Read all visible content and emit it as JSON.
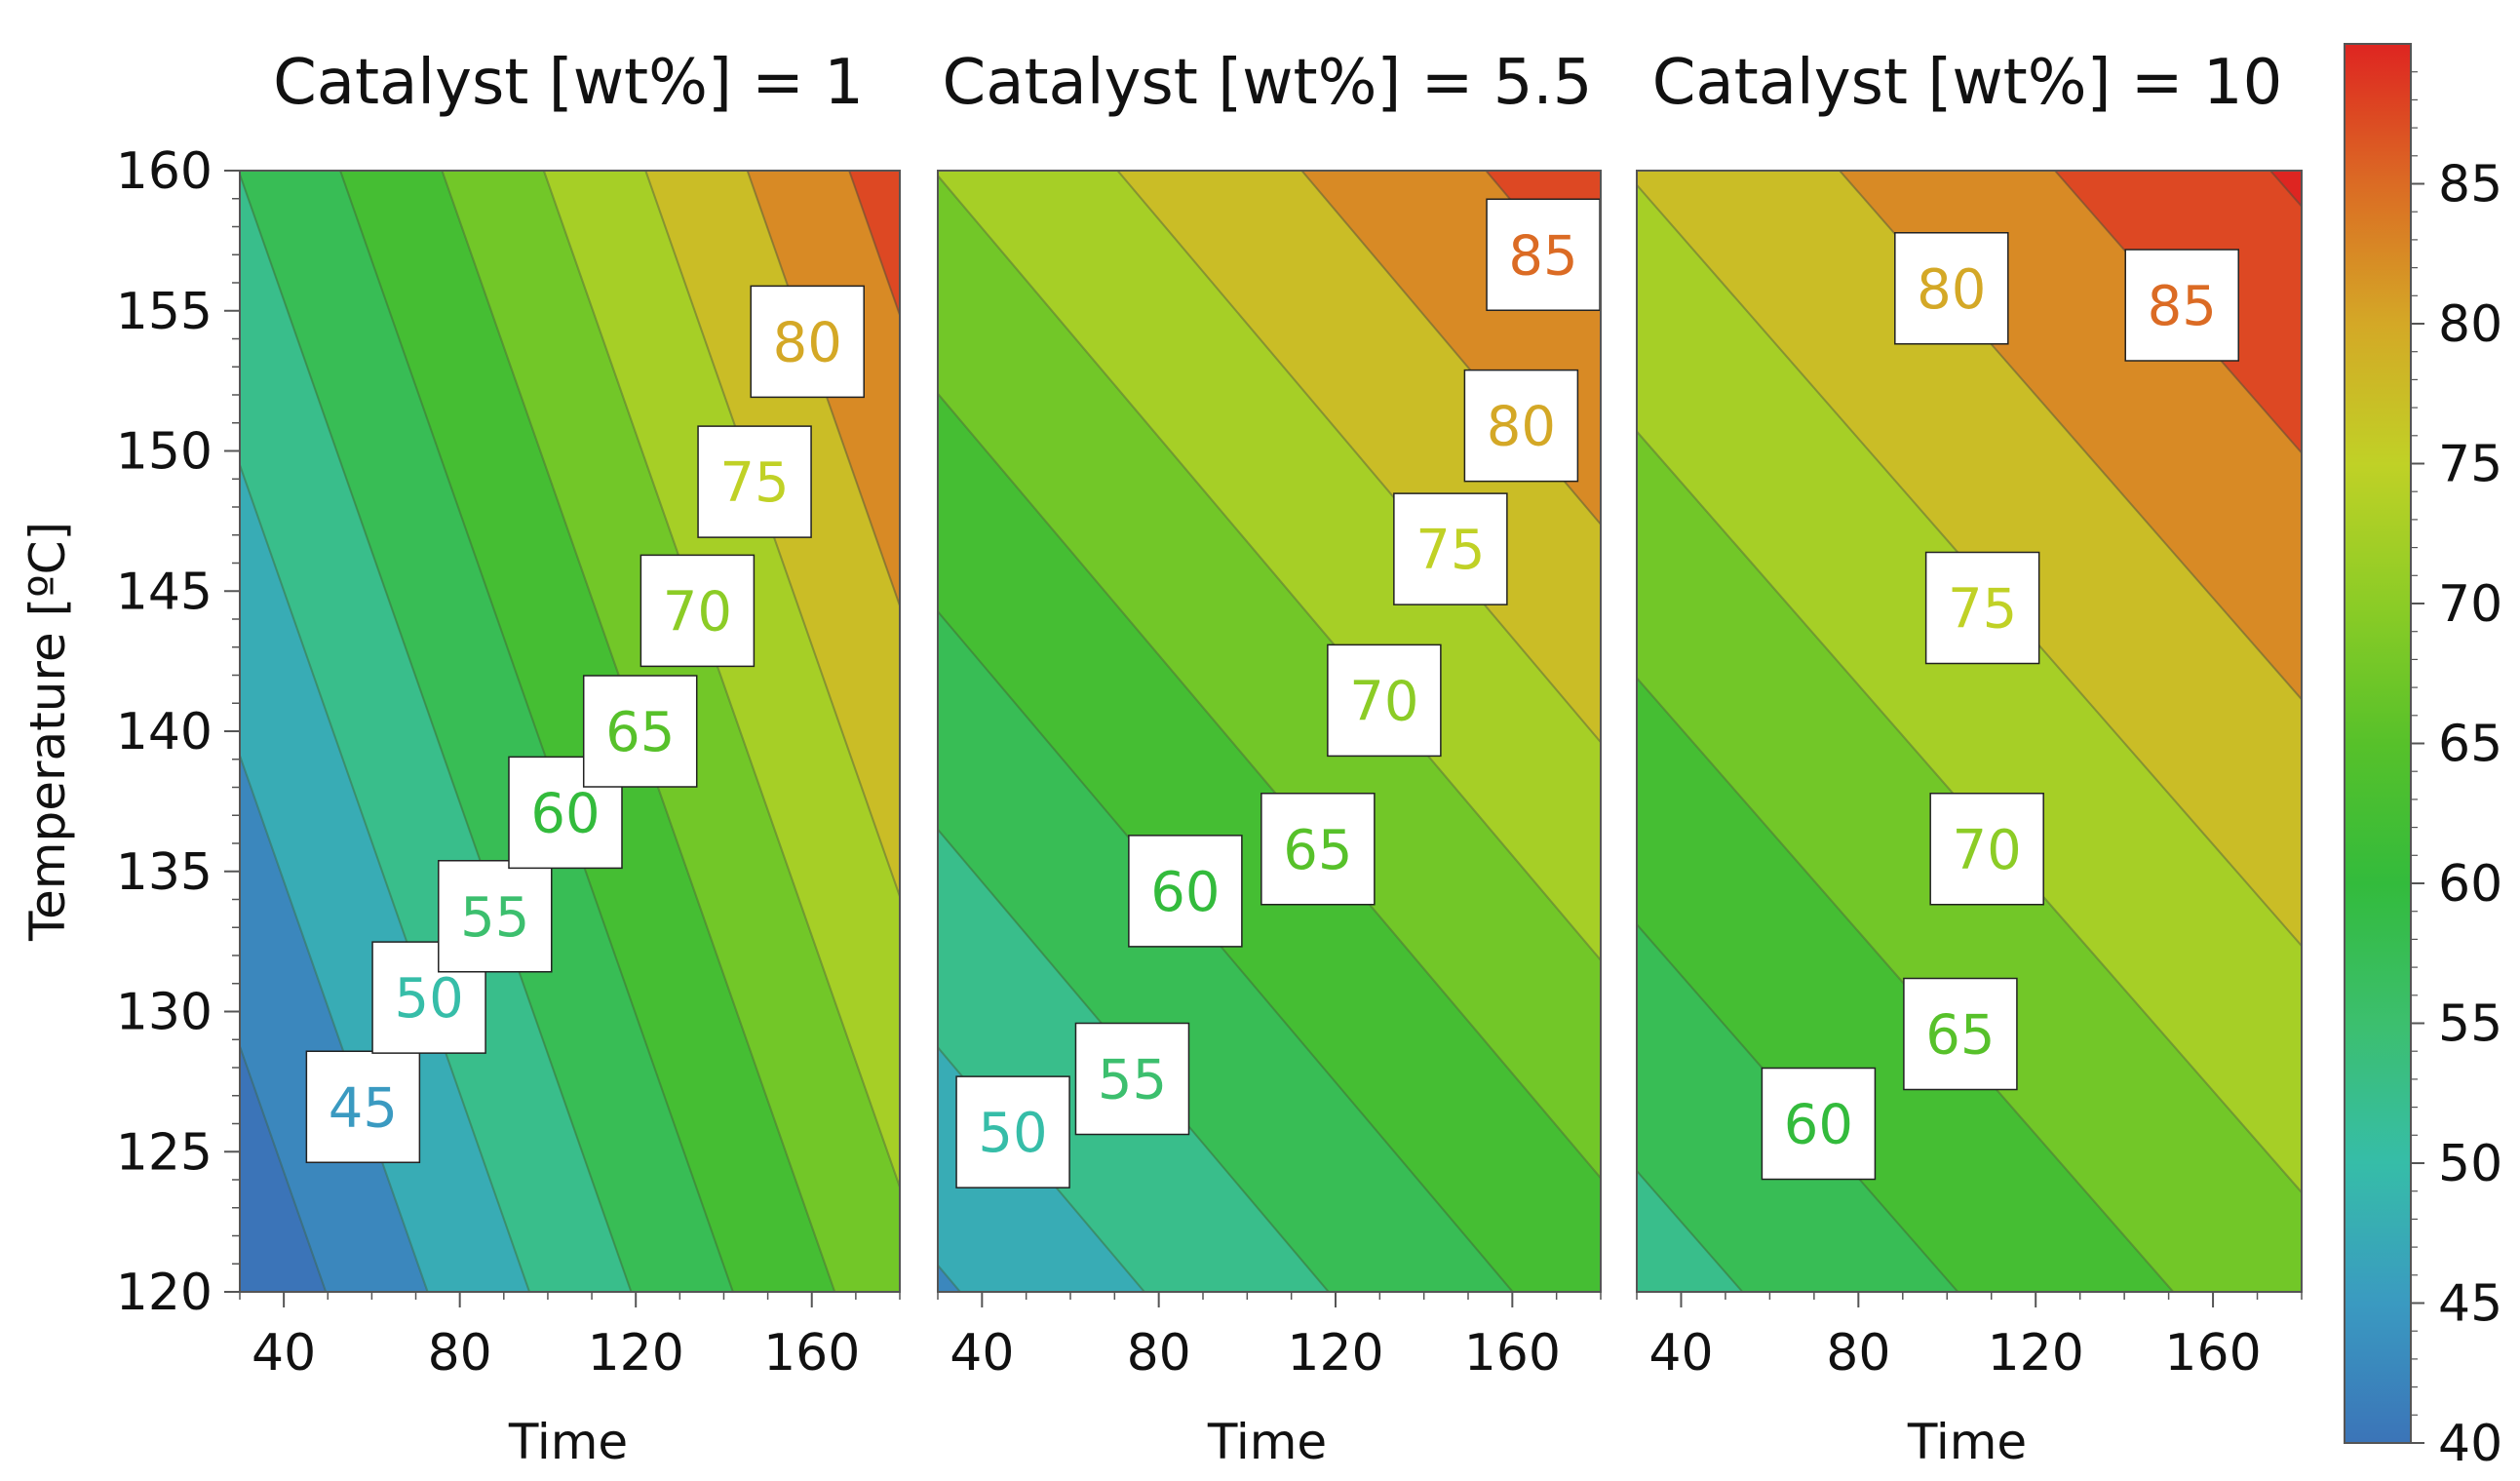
{
  "colors": {
    "scale": [
      "#3b74b8",
      "#3a9ac1",
      "#36bda8",
      "#3cbf6e",
      "#33bb3c",
      "#57c12a",
      "#8ccc26",
      "#c0d126",
      "#d4a826",
      "#db6b24",
      "#de2521"
    ]
  },
  "chart_data": {
    "type": "contour",
    "title": "",
    "colorbar": {
      "min": 40,
      "max": 90,
      "ticks": [
        40,
        45,
        50,
        55,
        60,
        65,
        70,
        75,
        80,
        85
      ],
      "tick_labels": [
        "40",
        "45",
        "50",
        "55",
        "60",
        "65",
        "70",
        "75",
        "80",
        "85"
      ]
    },
    "panels": [
      {
        "title": "Catalyst [wt%] = 1",
        "catalyst": 1,
        "xlabel": "Time",
        "ylabel": "Temperature [ºC]",
        "xlim": [
          30,
          180
        ],
        "ylim": [
          120,
          160
        ],
        "xticks": [
          40,
          80,
          120,
          160
        ],
        "xtick_labels": [
          "40",
          "80",
          "120",
          "160"
        ],
        "yticks": [
          120,
          125,
          130,
          135,
          140,
          145,
          150,
          155,
          160
        ],
        "ytick_labels": [
          "120",
          "125",
          "130",
          "135",
          "140",
          "145",
          "150",
          "155",
          "160"
        ],
        "contour_labels": [
          {
            "text": "45",
            "value": 45,
            "time": 58,
            "temp": 126.6
          },
          {
            "text": "50",
            "value": 50,
            "time": 73,
            "temp": 130.5
          },
          {
            "text": "55",
            "value": 55,
            "time": 88,
            "temp": 133.4
          },
          {
            "text": "60",
            "value": 60,
            "time": 104,
            "temp": 137.1
          },
          {
            "text": "65",
            "value": 65,
            "time": 121,
            "temp": 140.0
          },
          {
            "text": "70",
            "value": 70,
            "time": 134,
            "temp": 144.3
          },
          {
            "text": "75",
            "value": 75,
            "time": 147,
            "temp": 148.9
          },
          {
            "text": "80",
            "value": 80,
            "time": 159,
            "temp": 153.9
          }
        ]
      },
      {
        "title": "Catalyst [wt%] = 5.5",
        "catalyst": 5.5,
        "xlabel": "Time",
        "ylabel": "",
        "xlim": [
          30,
          180
        ],
        "ylim": [
          120,
          160
        ],
        "xticks": [
          40,
          80,
          120,
          160
        ],
        "xtick_labels": [
          "40",
          "80",
          "120",
          "160"
        ],
        "contour_labels": [
          {
            "text": "50",
            "value": 50,
            "time": 47,
            "temp": 125.7
          },
          {
            "text": "55",
            "value": 55,
            "time": 74,
            "temp": 127.6
          },
          {
            "text": "60",
            "value": 60,
            "time": 86,
            "temp": 134.3
          },
          {
            "text": "65",
            "value": 65,
            "time": 116,
            "temp": 135.8
          },
          {
            "text": "70",
            "value": 70,
            "time": 131,
            "temp": 141.1
          },
          {
            "text": "75",
            "value": 75,
            "time": 146,
            "temp": 146.5
          },
          {
            "text": "80",
            "value": 80,
            "time": 162,
            "temp": 150.9
          },
          {
            "text": "85",
            "value": 85,
            "time": 167,
            "temp": 157.0
          }
        ]
      },
      {
        "title": "Catalyst [wt%] = 10",
        "catalyst": 10,
        "xlabel": "Time",
        "ylabel": "",
        "xlim": [
          30,
          180
        ],
        "ylim": [
          120,
          160
        ],
        "xticks": [
          40,
          80,
          120,
          160
        ],
        "xtick_labels": [
          "40",
          "80",
          "120",
          "160"
        ],
        "contour_labels": [
          {
            "text": "60",
            "value": 60,
            "time": 71,
            "temp": 126.0
          },
          {
            "text": "65",
            "value": 65,
            "time": 103,
            "temp": 129.2
          },
          {
            "text": "70",
            "value": 70,
            "time": 109,
            "temp": 135.8
          },
          {
            "text": "75",
            "value": 75,
            "time": 108,
            "temp": 144.4
          },
          {
            "text": "80",
            "value": 80,
            "time": 101,
            "temp": 155.8
          },
          {
            "text": "85",
            "value": 85,
            "time": 153,
            "temp": 155.2
          }
        ]
      }
    ]
  }
}
